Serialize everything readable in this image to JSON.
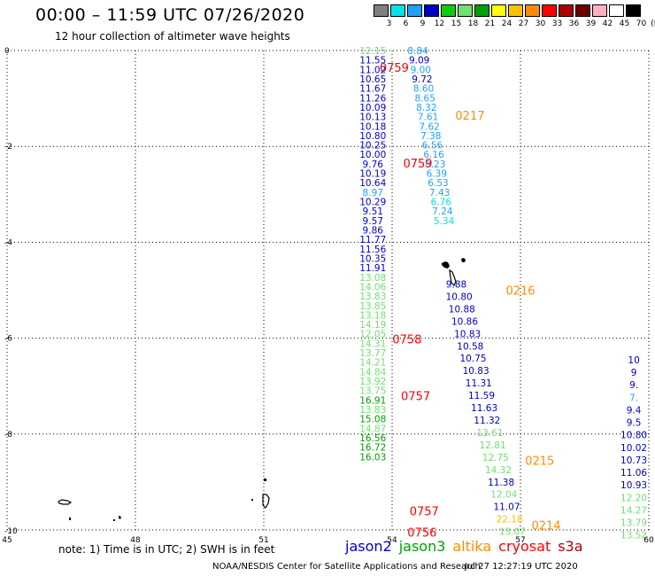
{
  "title": "00:00 – 11:59 UTC 07/26/2020",
  "subtitle": "12 hour collection of altimeter wave heights",
  "legend": {
    "colors": [
      "#808080",
      "#00e5e5",
      "#20a0ff",
      "#0000c8",
      "#10cc10",
      "#70e070",
      "#00a000",
      "#ffff00",
      "#ffc000",
      "#ff8c00",
      "#ff0000",
      "#b00000",
      "#6e0000",
      "#ffb0c0",
      "#ffffff",
      "#000000"
    ],
    "labels": [
      "3",
      "6",
      "9",
      "12",
      "15",
      "18",
      "21",
      "24",
      "27",
      "30",
      "33",
      "36",
      "39",
      "42",
      "45",
      "70",
      "(ft)"
    ]
  },
  "map": {
    "lon_range": [
      45,
      60
    ],
    "lat_range": [
      -10,
      0
    ],
    "lon_ticks": [
      45,
      48,
      51,
      54,
      57,
      60
    ],
    "lat_ticks": [
      0,
      -2,
      -4,
      -6,
      -8,
      -10
    ]
  },
  "tracks": [
    {
      "name": "jason2 track A",
      "lon": 53.55,
      "lat_start": 0.0,
      "lat_step": 0.197,
      "values": [
        {
          "v": "12.15",
          "c": "#70e070"
        },
        {
          "v": "11.55",
          "c": "#0000c8"
        },
        {
          "v": "11.02",
          "c": "#0000c8"
        },
        {
          "v": "10.65",
          "c": "#0000c8"
        },
        {
          "v": "11.67",
          "c": "#0000c8"
        },
        {
          "v": "11.26",
          "c": "#0000c8"
        },
        {
          "v": "10.09",
          "c": "#0000c8"
        },
        {
          "v": "10.13",
          "c": "#0000c8"
        },
        {
          "v": "10.18",
          "c": "#0000c8"
        },
        {
          "v": "10.80",
          "c": "#0000c8"
        },
        {
          "v": "10.25",
          "c": "#0000c8"
        },
        {
          "v": "10.00",
          "c": "#0000c8"
        },
        {
          "v": "9.76",
          "c": "#0000c8"
        },
        {
          "v": "10.19",
          "c": "#0000c8"
        },
        {
          "v": "10.64",
          "c": "#0000c8"
        },
        {
          "v": "8.97",
          "c": "#20a0ff"
        },
        {
          "v": "10.29",
          "c": "#0000c8"
        },
        {
          "v": "9.51",
          "c": "#0000c8"
        },
        {
          "v": "9.57",
          "c": "#0000c8"
        },
        {
          "v": "9.86",
          "c": "#0000c8"
        },
        {
          "v": "11.77",
          "c": "#0000c8"
        },
        {
          "v": "11.56",
          "c": "#0000c8"
        },
        {
          "v": "10.35",
          "c": "#0000c8"
        },
        {
          "v": "11.91",
          "c": "#0000c8"
        },
        {
          "v": "13.08",
          "c": "#70e070"
        },
        {
          "v": "14.06",
          "c": "#70e070"
        },
        {
          "v": "13.83",
          "c": "#70e070"
        },
        {
          "v": "13.85",
          "c": "#70e070"
        },
        {
          "v": "13.18",
          "c": "#70e070"
        },
        {
          "v": "14.19",
          "c": "#70e070"
        },
        {
          "v": "12.05",
          "c": "#70e070"
        },
        {
          "v": "14.31",
          "c": "#70e070"
        },
        {
          "v": "13.77",
          "c": "#70e070"
        },
        {
          "v": "14.21",
          "c": "#70e070"
        },
        {
          "v": "14.84",
          "c": "#70e070"
        },
        {
          "v": "13.92",
          "c": "#70e070"
        },
        {
          "v": "13.75",
          "c": "#70e070"
        },
        {
          "v": "16.91",
          "c": "#00a000"
        },
        {
          "v": "13.83",
          "c": "#70e070"
        },
        {
          "v": "15.08",
          "c": "#00a000"
        },
        {
          "v": "14.87",
          "c": "#70e070"
        },
        {
          "v": "16.56",
          "c": "#00a000"
        },
        {
          "v": "16.72",
          "c": "#00a000"
        },
        {
          "v": "16.03",
          "c": "#00a000"
        }
      ]
    },
    {
      "name": "jason3 track B",
      "lon": 54.6,
      "lat_start": 0.0,
      "lat_step": 0.197,
      "lon_slope": 0.034,
      "values": [
        {
          "v": "8.84",
          "c": "#20a0ff"
        },
        {
          "v": "9.09",
          "c": "#0000c8"
        },
        {
          "v": "9.00",
          "c": "#20a0ff"
        },
        {
          "v": "9.72",
          "c": "#0000c8"
        },
        {
          "v": "8.60",
          "c": "#20a0ff"
        },
        {
          "v": "8.65",
          "c": "#20a0ff"
        },
        {
          "v": "8.32",
          "c": "#20a0ff"
        },
        {
          "v": "7.61",
          "c": "#20a0ff"
        },
        {
          "v": "7.62",
          "c": "#20a0ff"
        },
        {
          "v": "7.38",
          "c": "#20a0ff"
        },
        {
          "v": "6.56",
          "c": "#20a0ff"
        },
        {
          "v": "6.16",
          "c": "#20a0ff"
        },
        {
          "v": "8.23",
          "c": "#20a0ff"
        },
        {
          "v": "6.39",
          "c": "#20a0ff"
        },
        {
          "v": "6.53",
          "c": "#20a0ff"
        },
        {
          "v": "7.43",
          "c": "#20a0ff"
        },
        {
          "v": "6.76",
          "c": "#00e5e5"
        },
        {
          "v": "7.24",
          "c": "#20a0ff"
        },
        {
          "v": "5.34",
          "c": "#00e5e5"
        }
      ]
    },
    {
      "name": "jason2 track C",
      "lon": 55.5,
      "lat_start": -4.87,
      "lat_step": 0.258,
      "lon_slope": 0.05,
      "values": [
        {
          "v": "9.88",
          "c": "#0000c8"
        },
        {
          "v": "10.80",
          "c": "#0000c8"
        },
        {
          "v": "10.88",
          "c": "#0000c8"
        },
        {
          "v": "10.86",
          "c": "#0000c8"
        },
        {
          "v": "10.83",
          "c": "#0000c8"
        },
        {
          "v": "10.58",
          "c": "#0000c8"
        },
        {
          "v": "10.75",
          "c": "#0000c8"
        },
        {
          "v": "10.83",
          "c": "#0000c8"
        },
        {
          "v": "11.31",
          "c": "#0000c8"
        },
        {
          "v": "11.59",
          "c": "#0000c8"
        },
        {
          "v": "11.63",
          "c": "#0000c8"
        },
        {
          "v": "11.32",
          "c": "#0000c8"
        },
        {
          "v": "13.61",
          "c": "#70e070"
        },
        {
          "v": "12.81",
          "c": "#70e070"
        },
        {
          "v": "12.75",
          "c": "#70e070"
        },
        {
          "v": "14.32",
          "c": "#70e070"
        },
        {
          "v": "11.38",
          "c": "#0000c8"
        },
        {
          "v": "12.04",
          "c": "#70e070"
        },
        {
          "v": "11.07",
          "c": "#0000c8"
        },
        {
          "v": "22.18",
          "c": "#ffc000"
        },
        {
          "v": "13.07",
          "c": "#70e070"
        }
      ]
    },
    {
      "name": "jason2 track D",
      "lon": 59.65,
      "lat_start": -6.45,
      "lat_step": 0.261,
      "lon_slope": 0.0,
      "values": [
        {
          "v": "10",
          "c": "#0000c8"
        },
        {
          "v": "9",
          "c": "#0000c8"
        },
        {
          "v": "9.",
          "c": "#0000c8"
        },
        {
          "v": "7.",
          "c": "#20a0ff"
        },
        {
          "v": "9.4",
          "c": "#0000c8"
        },
        {
          "v": "9.5",
          "c": "#0000c8"
        },
        {
          "v": "10.80",
          "c": "#0000c8"
        },
        {
          "v": "10.02",
          "c": "#0000c8"
        },
        {
          "v": "10.73",
          "c": "#0000c8"
        },
        {
          "v": "11.06",
          "c": "#0000c8"
        },
        {
          "v": "10.93",
          "c": "#0000c8"
        },
        {
          "v": "12.20",
          "c": "#70e070"
        },
        {
          "v": "14.27",
          "c": "#70e070"
        },
        {
          "v": "13.79",
          "c": "#70e070"
        },
        {
          "v": "13.52",
          "c": "#70e070"
        }
      ]
    }
  ],
  "time_labels": [
    {
      "text": "0759",
      "lon": 54.05,
      "lat": -0.35,
      "c": "#ff0000"
    },
    {
      "text": "0217",
      "lon": 55.82,
      "lat": -1.35,
      "c": "#ff8c00"
    },
    {
      "text": "0759",
      "lon": 54.6,
      "lat": -2.35,
      "c": "#ff0000"
    },
    {
      "text": "0216",
      "lon": 57.0,
      "lat": -5.0,
      "c": "#ff8c00"
    },
    {
      "text": "0758",
      "lon": 54.35,
      "lat": -6.02,
      "c": "#ff0000"
    },
    {
      "text": "0757",
      "lon": 54.55,
      "lat": -7.2,
      "c": "#ff0000"
    },
    {
      "text": "0215",
      "lon": 57.45,
      "lat": -8.55,
      "c": "#ff8c00"
    },
    {
      "text": "0757",
      "lon": 54.75,
      "lat": -9.6,
      "c": "#ff0000"
    },
    {
      "text": "0214",
      "lon": 57.6,
      "lat": -9.9,
      "c": "#ff8c00"
    },
    {
      "text": "0756",
      "lon": 54.7,
      "lat": -10.05,
      "c": "#ff0000"
    }
  ],
  "note": "note: 1) Time is in UTC; 2) SWH is in feet",
  "satellites": [
    {
      "name": "jason2",
      "color": "#0000c8"
    },
    {
      "name": "jason3",
      "color": "#00a000"
    },
    {
      "name": "altika",
      "color": "#ff8c00"
    },
    {
      "name": "cryosat",
      "color": "#ff0000"
    },
    {
      "name": "s3a",
      "color": "#b00000"
    }
  ],
  "credit": "NOAA/NESDIS Center for Satellite Applications and Research",
  "timestamp": "Jul 27 12:27:19 UTC 2020"
}
